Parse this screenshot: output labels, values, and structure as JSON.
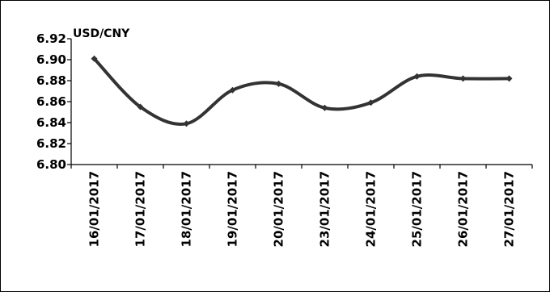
{
  "chart_data": {
    "type": "line",
    "title": "",
    "xlabel": "",
    "ylabel": "",
    "series_label": "USD/CNY",
    "categories": [
      "16/01/2017",
      "17/01/2017",
      "18/01/2017",
      "19/01/2017",
      "20/01/2017",
      "23/01/2017",
      "24/01/2017",
      "25/01/2017",
      "26/01/2017",
      "27/01/2017"
    ],
    "series": [
      {
        "name": "USD/CNY",
        "values": [
          6.901,
          6.855,
          6.839,
          6.871,
          6.877,
          6.854,
          6.859,
          6.884,
          6.882,
          6.882
        ]
      }
    ],
    "ylim": [
      6.8,
      6.92
    ],
    "yticks": [
      "6.80",
      "6.82",
      "6.84",
      "6.86",
      "6.88",
      "6.90",
      "6.92"
    ],
    "grid": false,
    "legend": "none",
    "smooth": true,
    "line_color": "#333333",
    "marker": "diamond"
  }
}
